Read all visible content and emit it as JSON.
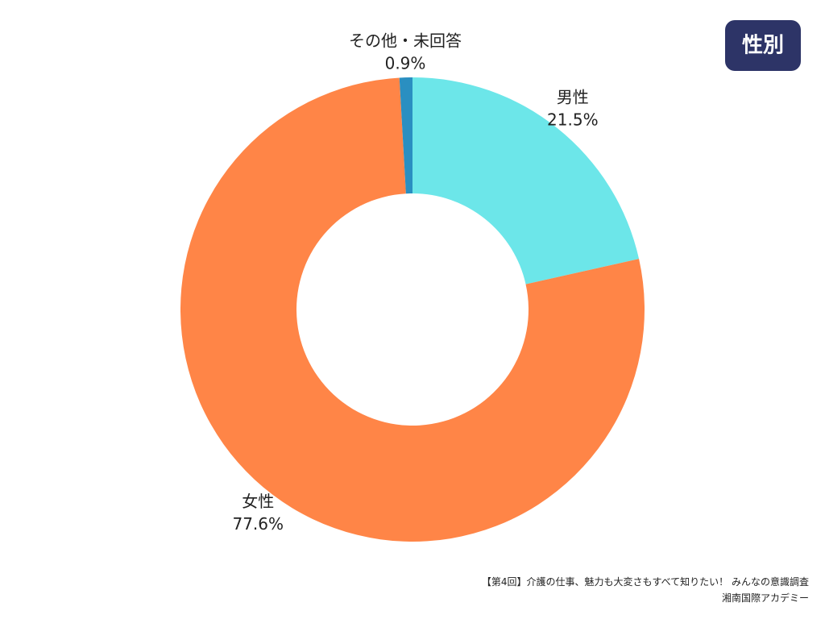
{
  "chart_data": {
    "type": "donut",
    "title": "性別",
    "categories": [
      "男性",
      "女性",
      "その他・未回答"
    ],
    "values": [
      21.5,
      77.6,
      0.9
    ],
    "value_labels": [
      "21.5%",
      "77.6%",
      "0.9%"
    ],
    "colors": [
      "#6ce6e9",
      "#ff8547",
      "#2a8fc1"
    ],
    "source": [
      "【第4回】介護の仕事、魅力も大変さもすべて知りたい！ みんなの意識調査",
      "湘南国際アカデミー"
    ]
  }
}
